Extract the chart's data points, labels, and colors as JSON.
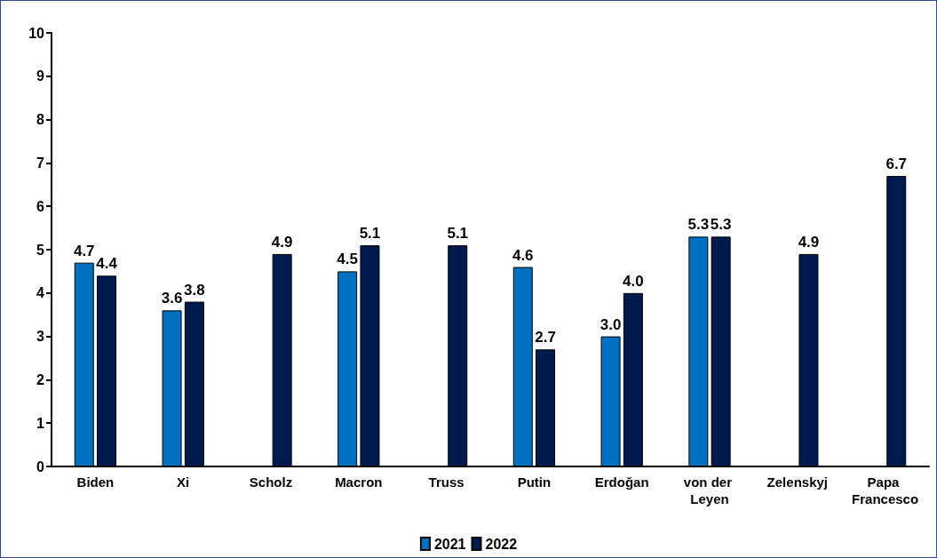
{
  "chart_data": {
    "type": "bar",
    "categories": [
      "Biden",
      "Xi",
      "Scholz",
      "Macron",
      "Truss",
      "Putin",
      "Erdoğan",
      "von der Leyen",
      "Zelenskyj",
      "Papa Francesco"
    ],
    "series": [
      {
        "name": "2021",
        "color": "#0070c0",
        "values": [
          4.7,
          3.6,
          null,
          4.5,
          null,
          4.6,
          3.0,
          5.3,
          null,
          null
        ],
        "value_labels": [
          "4.7",
          "3.6",
          null,
          "4.5",
          null,
          "4.6",
          "3.0",
          "5.3",
          null,
          null
        ]
      },
      {
        "name": "2022",
        "color": "#001a4d",
        "values": [
          4.4,
          3.8,
          4.9,
          5.1,
          5.1,
          2.7,
          4.0,
          5.3,
          4.9,
          6.7
        ],
        "value_labels": [
          "4.4",
          "3.8",
          "4.9",
          "5.1",
          "5.1",
          "2.7",
          "4.0",
          "5.3",
          "4.9",
          "6.7"
        ]
      }
    ],
    "ylim": [
      0,
      10
    ],
    "yticks": [
      0,
      1,
      2,
      3,
      4,
      5,
      6,
      7,
      8,
      9,
      10
    ],
    "grid": false,
    "legend": "bottom"
  }
}
